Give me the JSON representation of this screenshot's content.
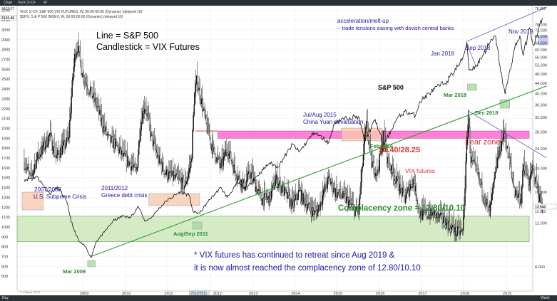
{
  "window": {
    "tab_chart": "Chart",
    "tab_symbol": "%VX 1!-CF",
    "tab_period": "W",
    "legend_line1": "%VX 1!-CF, S&P 500 VIX FUTURES, W, 00:00-00:00 (Dynamic) (delayed 10)",
    "legend_line2": "$SPX, S & P 500 INDEX, W, 00:00-00:00 (Dynamic) (delayed 15)",
    "status_left": "Day",
    "status_right": "Week",
    "watermark": "© eSignal, 2019",
    "spx_last": "3120.46",
    "vix_last": "13.940",
    "vix_last2": "12.990",
    "spx_top": "3413.07",
    "vix_top": "78.000"
  },
  "chart_data": {
    "type": "line",
    "title": "",
    "x_ticks": [
      "2009",
      "2010",
      "2011",
      "2012",
      "2013",
      "2014",
      "2015",
      "2016",
      "2017",
      "2018",
      "2019"
    ],
    "highlighted_tick": "2012/2011",
    "spx_axis": {
      "ticks": [
        3300,
        3200,
        3100,
        3000,
        2900,
        2800,
        2700,
        2600,
        2500,
        2400,
        2300,
        2200,
        2100,
        2000,
        1900,
        1800,
        1700,
        1600,
        1500,
        1400,
        1300,
        1200,
        1100,
        1000,
        900,
        800,
        700,
        600,
        500
      ],
      "range": [
        500,
        3413
      ]
    },
    "vix_axis": {
      "ticks": [
        76,
        72,
        68,
        64,
        60,
        56,
        52,
        48,
        44,
        40,
        36,
        32,
        28,
        24,
        20,
        16,
        12,
        8
      ],
      "range": [
        4,
        78
      ],
      "scale": "log"
    },
    "series": [
      {
        "name": "S&P 500",
        "kind": "line",
        "color": "#111111",
        "points": [
          [
            2007.6,
            1480
          ],
          [
            2007.9,
            1510
          ],
          [
            2008.2,
            1340
          ],
          [
            2008.4,
            1400
          ],
          [
            2008.6,
            1260
          ],
          [
            2008.75,
            1000
          ],
          [
            2008.9,
            850
          ],
          [
            2009.05,
            800
          ],
          [
            2009.18,
            690
          ],
          [
            2009.3,
            850
          ],
          [
            2009.5,
            950
          ],
          [
            2009.7,
            1060
          ],
          [
            2009.95,
            1115
          ],
          [
            2010.1,
            1090
          ],
          [
            2010.3,
            1210
          ],
          [
            2010.45,
            1060
          ],
          [
            2010.6,
            1090
          ],
          [
            2010.75,
            1170
          ],
          [
            2010.95,
            1260
          ],
          [
            2011.3,
            1360
          ],
          [
            2011.5,
            1320
          ],
          [
            2011.6,
            1150
          ],
          [
            2011.75,
            1140
          ],
          [
            2011.95,
            1260
          ],
          [
            2012.25,
            1400
          ],
          [
            2012.4,
            1300
          ],
          [
            2012.65,
            1450
          ],
          [
            2012.85,
            1380
          ],
          [
            2013.0,
            1470
          ],
          [
            2013.4,
            1650
          ],
          [
            2013.6,
            1610
          ],
          [
            2013.95,
            1840
          ],
          [
            2014.1,
            1760
          ],
          [
            2014.45,
            1960
          ],
          [
            2014.8,
            1860
          ],
          [
            2014.95,
            2070
          ],
          [
            2015.3,
            2110
          ],
          [
            2015.5,
            2120
          ],
          [
            2015.65,
            1870
          ],
          [
            2015.9,
            2090
          ],
          [
            2016.1,
            1830
          ],
          [
            2016.4,
            2090
          ],
          [
            2016.6,
            2170
          ],
          [
            2016.85,
            2130
          ],
          [
            2016.95,
            2270
          ],
          [
            2017.3,
            2400
          ],
          [
            2017.6,
            2480
          ],
          [
            2017.95,
            2690
          ],
          [
            2018.07,
            2870
          ],
          [
            2018.12,
            2590
          ],
          [
            2018.3,
            2640
          ],
          [
            2018.6,
            2860
          ],
          [
            2018.75,
            2930
          ],
          [
            2018.85,
            2630
          ],
          [
            2018.97,
            2350
          ],
          [
            2019.2,
            2820
          ],
          [
            2019.32,
            2940
          ],
          [
            2019.4,
            2740
          ],
          [
            2019.55,
            3020
          ],
          [
            2019.65,
            2840
          ],
          [
            2019.85,
            3120
          ]
        ]
      },
      {
        "name": "VIX futures",
        "kind": "candlestick",
        "color": "#111111",
        "weekly_close": [
          [
            2007.6,
            21
          ],
          [
            2007.75,
            18
          ],
          [
            2007.9,
            22
          ],
          [
            2008.05,
            24
          ],
          [
            2008.2,
            27
          ],
          [
            2008.35,
            22
          ],
          [
            2008.5,
            24
          ],
          [
            2008.65,
            26
          ],
          [
            2008.72,
            40
          ],
          [
            2008.8,
            58
          ],
          [
            2008.87,
            62
          ],
          [
            2008.95,
            50
          ],
          [
            2009.05,
            44
          ],
          [
            2009.18,
            40
          ],
          [
            2009.3,
            36
          ],
          [
            2009.45,
            30
          ],
          [
            2009.6,
            26
          ],
          [
            2009.75,
            25
          ],
          [
            2009.95,
            22
          ],
          [
            2010.1,
            21
          ],
          [
            2010.25,
            19
          ],
          [
            2010.35,
            30
          ],
          [
            2010.45,
            36
          ],
          [
            2010.6,
            27
          ],
          [
            2010.75,
            22
          ],
          [
            2010.95,
            19
          ],
          [
            2011.2,
            18
          ],
          [
            2011.4,
            17
          ],
          [
            2011.55,
            21
          ],
          [
            2011.62,
            38
          ],
          [
            2011.68,
            45
          ],
          [
            2011.75,
            40
          ],
          [
            2011.9,
            30
          ],
          [
            2012.05,
            24
          ],
          [
            2012.25,
            20
          ],
          [
            2012.4,
            24
          ],
          [
            2012.6,
            19
          ],
          [
            2012.8,
            17
          ],
          [
            2012.95,
            19
          ],
          [
            2013.2,
            15
          ],
          [
            2013.4,
            15
          ],
          [
            2013.55,
            18
          ],
          [
            2013.75,
            16
          ],
          [
            2013.95,
            14
          ],
          [
            2014.1,
            16
          ],
          [
            2014.3,
            14
          ],
          [
            2014.5,
            13
          ],
          [
            2014.8,
            18
          ],
          [
            2014.95,
            16
          ],
          [
            2015.2,
            15
          ],
          [
            2015.5,
            13
          ],
          [
            2015.65,
            26
          ],
          [
            2015.7,
            30
          ],
          [
            2015.8,
            21
          ],
          [
            2015.95,
            19
          ],
          [
            2016.1,
            27
          ],
          [
            2016.2,
            21
          ],
          [
            2016.45,
            17
          ],
          [
            2016.6,
            15
          ],
          [
            2016.8,
            18
          ],
          [
            2016.95,
            13
          ],
          [
            2017.3,
            13
          ],
          [
            2017.6,
            12
          ],
          [
            2017.8,
            11
          ],
          [
            2017.97,
            11
          ],
          [
            2018.1,
            33
          ],
          [
            2018.15,
            22
          ],
          [
            2018.35,
            18
          ],
          [
            2018.6,
            13
          ],
          [
            2018.8,
            22
          ],
          [
            2018.95,
            28
          ],
          [
            2019.05,
            22
          ],
          [
            2019.2,
            16
          ],
          [
            2019.35,
            15
          ],
          [
            2019.4,
            20
          ],
          [
            2019.55,
            17
          ],
          [
            2019.62,
            20
          ],
          [
            2019.75,
            16
          ],
          [
            2019.85,
            14
          ]
        ]
      }
    ],
    "zones": [
      {
        "label": "Fear zone",
        "value": "26.40/28.25",
        "vix_range": [
          26.4,
          28.25
        ],
        "color": "#ff7fd6"
      },
      {
        "label": "Complacency zone = 12.80/10.10",
        "vix_range": [
          10.1,
          12.8
        ],
        "color": "#d5ebc5"
      }
    ],
    "trendlines": [
      {
        "name": "spx-support",
        "color": "#2aa02a",
        "from": [
          2009.18,
          700
        ],
        "to": [
          2019.95,
          2430
        ]
      },
      {
        "name": "spx-upper",
        "color": "#5050c8",
        "from": [
          2018.05,
          2880
        ],
        "to": [
          2019.95,
          3230
        ]
      },
      {
        "name": "vix-resistance",
        "color": "#5050c8",
        "from": [
          2018.1,
          34
        ],
        "to": [
          2019.95,
          22
        ]
      }
    ],
    "annotations": {
      "legend_line": "Line =  S&P 500",
      "legend_candle": "Candlestick = VIX Futures",
      "accel": "acceleration/melt-up",
      "accel_sub": "~ trade tensions easing with dovish central banks",
      "nov2019": "Nov 2019",
      "jan2018": "Jan 2018",
      "sep2018": "Sep 2018",
      "spx_label": "S&P 500",
      "mar2018": "Mar 2018",
      "dec2018": "Dec 2018",
      "julaug2015": "Jul/Aug 2015",
      "yuan": "China Yuan devaluation",
      "feb2016": "Feb 2016",
      "fear_value": "26.40/28.25",
      "fear_label": "Fear zone",
      "vix_label": "VIX futures",
      "crisis0708": "2007/2008",
      "subprime": "U.S. Subprime Crisis",
      "crisis1112": "2011/2012",
      "greece": "Greece debt crisis",
      "complacency": "Complacency zone = 12.80/10.10",
      "augsep2011": "Aug/Sep 2011",
      "mar2009": "Mar 2009",
      "note1": "* VIX futures has continued to retreat since Aug 2019 &",
      "note2": "it is now almost reached the complacency zone of 12.80/10.10"
    }
  }
}
